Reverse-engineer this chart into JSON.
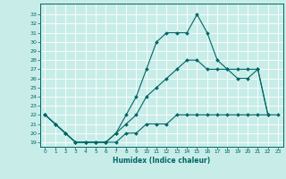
{
  "xlabel": "Humidex (Indice chaleur)",
  "background_color": "#c8ede8",
  "grid_color": "#ffffff",
  "line_color": "#006666",
  "x_hours": [
    0,
    1,
    2,
    3,
    4,
    5,
    6,
    7,
    8,
    9,
    10,
    11,
    12,
    13,
    14,
    15,
    16,
    17,
    18,
    19,
    20,
    21,
    22,
    23
  ],
  "line_max": [
    22,
    21,
    20,
    19,
    19,
    19,
    19,
    20,
    22,
    24,
    27,
    30,
    31,
    31,
    31,
    33,
    31,
    28,
    27,
    26,
    26,
    27,
    22,
    null
  ],
  "line_mean": [
    22,
    21,
    20,
    19,
    19,
    19,
    19,
    20,
    21,
    22,
    24,
    25,
    26,
    27,
    28,
    28,
    27,
    27,
    27,
    27,
    27,
    27,
    22,
    null
  ],
  "line_min": [
    22,
    21,
    20,
    19,
    19,
    19,
    19,
    19,
    20,
    20,
    21,
    21,
    21,
    22,
    22,
    22,
    22,
    22,
    22,
    22,
    22,
    22,
    22,
    22
  ],
  "ylim": [
    18.5,
    34.2
  ],
  "yticks": [
    19,
    20,
    21,
    22,
    23,
    24,
    25,
    26,
    27,
    28,
    29,
    30,
    31,
    32,
    33
  ],
  "xticks": [
    0,
    1,
    2,
    3,
    4,
    5,
    6,
    7,
    8,
    9,
    10,
    11,
    12,
    13,
    14,
    15,
    16,
    17,
    18,
    19,
    20,
    21,
    22,
    23
  ],
  "xlim": [
    -0.5,
    23.5
  ]
}
